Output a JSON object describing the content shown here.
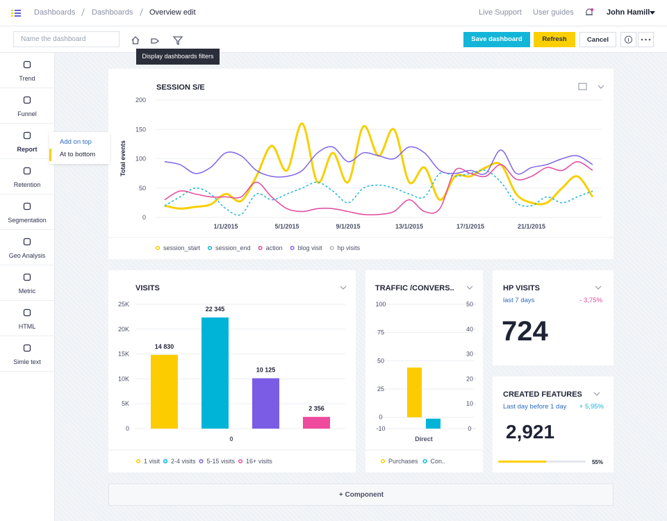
{
  "header": {
    "breadcrumbs": [
      "Dashboards",
      "Dashboards",
      "Overview edit"
    ],
    "links": [
      "Live Support",
      "User guides"
    ],
    "user": "John Hamill"
  },
  "toolbar": {
    "name_placeholder": "Name the dashboard",
    "tooltip": "Display dashboards filters",
    "buttons": [
      "Save dashboard",
      "Refresh",
      "Cancel"
    ]
  },
  "sidebar": {
    "items": [
      "Trend",
      "Funnel",
      "Report",
      "Retention",
      "Segmentation",
      "Geo Analysis",
      "Metric",
      "HTML",
      "Simle text"
    ],
    "active": 2
  },
  "dropdown": {
    "items": [
      "Add on top",
      "At to bottom"
    ]
  },
  "chart_data": [
    {
      "type": "line",
      "title": "SESSION S/E",
      "y_label": "Total events",
      "categories": [
        null,
        null,
        null,
        null,
        "1/1/2015",
        null,
        null,
        null,
        "5/1/2015",
        null,
        null,
        null,
        "9/1/2015",
        null,
        null,
        null,
        "13/1/2015",
        null,
        null,
        null,
        "17/1/2015",
        null,
        null,
        null,
        "21/1/2015",
        null,
        null,
        null,
        null
      ],
      "ylim": [
        0,
        200
      ],
      "yticks": [
        0,
        50,
        100,
        150,
        200
      ],
      "grid": true,
      "series": [
        {
          "name": "session_start",
          "color": "#f7cf00",
          "style": "solid",
          "values": [
            20,
            15,
            18,
            22,
            40,
            28,
            70,
            122,
            80,
            160,
            60,
            110,
            60,
            155,
            105,
            150,
            60,
            85,
            30,
            70,
            70,
            85,
            90,
            40,
            25,
            25,
            50,
            70,
            35
          ]
        },
        {
          "name": "session_end",
          "color": "#16b6d6",
          "style": "dashed",
          "values": [
            20,
            35,
            50,
            40,
            15,
            5,
            40,
            30,
            40,
            50,
            60,
            45,
            25,
            50,
            55,
            50,
            40,
            35,
            75,
            70,
            75,
            80,
            60,
            25,
            20,
            35,
            25,
            35,
            45
          ]
        },
        {
          "name": "action",
          "color": "#e0479e",
          "style": "solid",
          "values": [
            30,
            45,
            40,
            35,
            35,
            35,
            60,
            35,
            15,
            10,
            15,
            15,
            10,
            5,
            5,
            10,
            30,
            10,
            15,
            80,
            75,
            70,
            90,
            65,
            70,
            85,
            80,
            95,
            80
          ]
        },
        {
          "name": "blog visit",
          "color": "#7f63e6",
          "style": "solid",
          "values": [
            95,
            90,
            75,
            85,
            110,
            105,
            80,
            70,
            70,
            80,
            110,
            120,
            95,
            110,
            105,
            100,
            120,
            110,
            80,
            75,
            80,
            75,
            115,
            75,
            85,
            90,
            100,
            105,
            90
          ]
        },
        {
          "name": "hp visits",
          "color": "#b4b8c4",
          "style": "solid",
          "values": [
            null,
            null,
            null,
            null,
            null,
            null,
            null,
            null,
            null,
            null,
            null,
            null,
            null,
            null,
            null,
            null,
            null,
            null,
            null,
            null,
            null,
            null,
            null,
            null,
            null,
            null,
            null,
            null,
            null
          ]
        }
      ]
    },
    {
      "type": "bar",
      "title": "VISITS",
      "categories": [
        "0"
      ],
      "ylim": [
        0,
        25000
      ],
      "yticks": [
        0,
        {
          "value": 5000,
          "label": "5K"
        },
        {
          "value": 10000,
          "label": "10K"
        },
        {
          "value": 15000,
          "label": "15K"
        },
        {
          "value": 20000,
          "label": "20K"
        },
        {
          "value": 25000,
          "label": "25K"
        }
      ],
      "grid": true,
      "series": [
        {
          "name": "1 visit",
          "color": "#fccc00",
          "values": [
            14830
          ],
          "value_labels": [
            "14 830"
          ]
        },
        {
          "name": "2-4 visits",
          "color": "#00b4d8",
          "values": [
            22345
          ],
          "value_labels": [
            "22 345"
          ]
        },
        {
          "name": "5-15 visits",
          "color": "#7b5ce5",
          "values": [
            10125
          ],
          "value_labels": [
            "10 125"
          ]
        },
        {
          "name": "16+ visits",
          "color": "#ee4a9e",
          "values": [
            2356
          ],
          "value_labels": [
            "2 356"
          ]
        }
      ]
    },
    {
      "type": "bar",
      "title": "TRAFFIC /CONVERS..",
      "categories": [
        "Direct"
      ],
      "ylim": [
        -10,
        100
      ],
      "yticks": [
        -10,
        0,
        25,
        50,
        75,
        100
      ],
      "y2lim": [
        0,
        50
      ],
      "y2ticks": [
        0,
        10,
        20,
        30,
        40,
        50
      ],
      "grid": true,
      "series": [
        {
          "name": "Purchases",
          "color": "#fccc00",
          "values": [
            44
          ]
        },
        {
          "name": "Con..",
          "color": "#00b4d8",
          "axis": "y2",
          "values": [
            4
          ]
        }
      ]
    }
  ],
  "kpis": [
    {
      "title": "HP VISITS",
      "period": "last 7 days",
      "change": "- 3,75%",
      "value": "724"
    },
    {
      "title": "CREATED FEATURES",
      "period": "Last day before 1 day",
      "change": "+ 5,95%",
      "value": "2,921",
      "progress": 55,
      "progress_label": "55%"
    }
  ],
  "add_component": "+ Component"
}
